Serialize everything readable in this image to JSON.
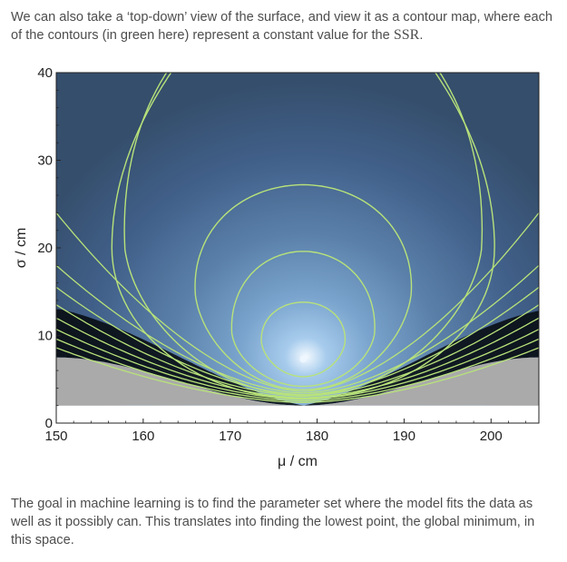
{
  "text": {
    "intro_before": "We can also take a ‘top-down’ view of the surface, and view it as a contour map, where each of the contours (in green here) represent a constant value for the ",
    "intro_ssr": "SSR",
    "intro_after": ".",
    "outro": "The goal in machine learning is to find the parameter set where the model fits the data as well as it possibly can. This translates into finding the lowest point, the global minimum, in this space."
  },
  "chart_data": {
    "type": "contour",
    "xlabel": "μ / cm",
    "ylabel": "σ / cm",
    "xlim": [
      150,
      205.5
    ],
    "ylim": [
      0,
      40
    ],
    "x_ticks": [
      150,
      160,
      170,
      180,
      190,
      200
    ],
    "y_ticks": [
      0,
      10,
      20,
      30,
      40
    ],
    "minimum": {
      "mu": 178.4,
      "sigma": 7.3
    },
    "contour_color": "#b8e27a",
    "background_high": "#354e6c",
    "background_low": "#eef6ff",
    "excluded_region_color": "#aaaaaa",
    "contours": [
      {
        "label": "c1",
        "mu0": 178.4,
        "sigma0": 9.2,
        "a": 4.8,
        "b_up": 4.6,
        "b_down": 3.9
      },
      {
        "label": "c2",
        "mu0": 178.4,
        "sigma0": 10.2,
        "a": 8.2,
        "b_up": 9.4,
        "b_down": 6.0
      },
      {
        "label": "c3",
        "mu0": 178.4,
        "sigma0": 14.6,
        "a": 12.4,
        "b_up": 12.6,
        "b_down": 10.8
      },
      {
        "label": "c4",
        "mu0": 178.4,
        "sigma0": 19.8,
        "a": 20.5,
        "b_up": 29.4,
        "b_down": 16.6
      }
    ],
    "open_contour_sigma_at_left_edge": [
      8.6,
      9.6,
      10.7,
      12.0,
      13.5,
      15.5,
      18.0,
      24.0
    ],
    "lower_boundary_sigma": {
      "left": 7.5,
      "min": 2.0,
      "right": 7.5
    }
  }
}
